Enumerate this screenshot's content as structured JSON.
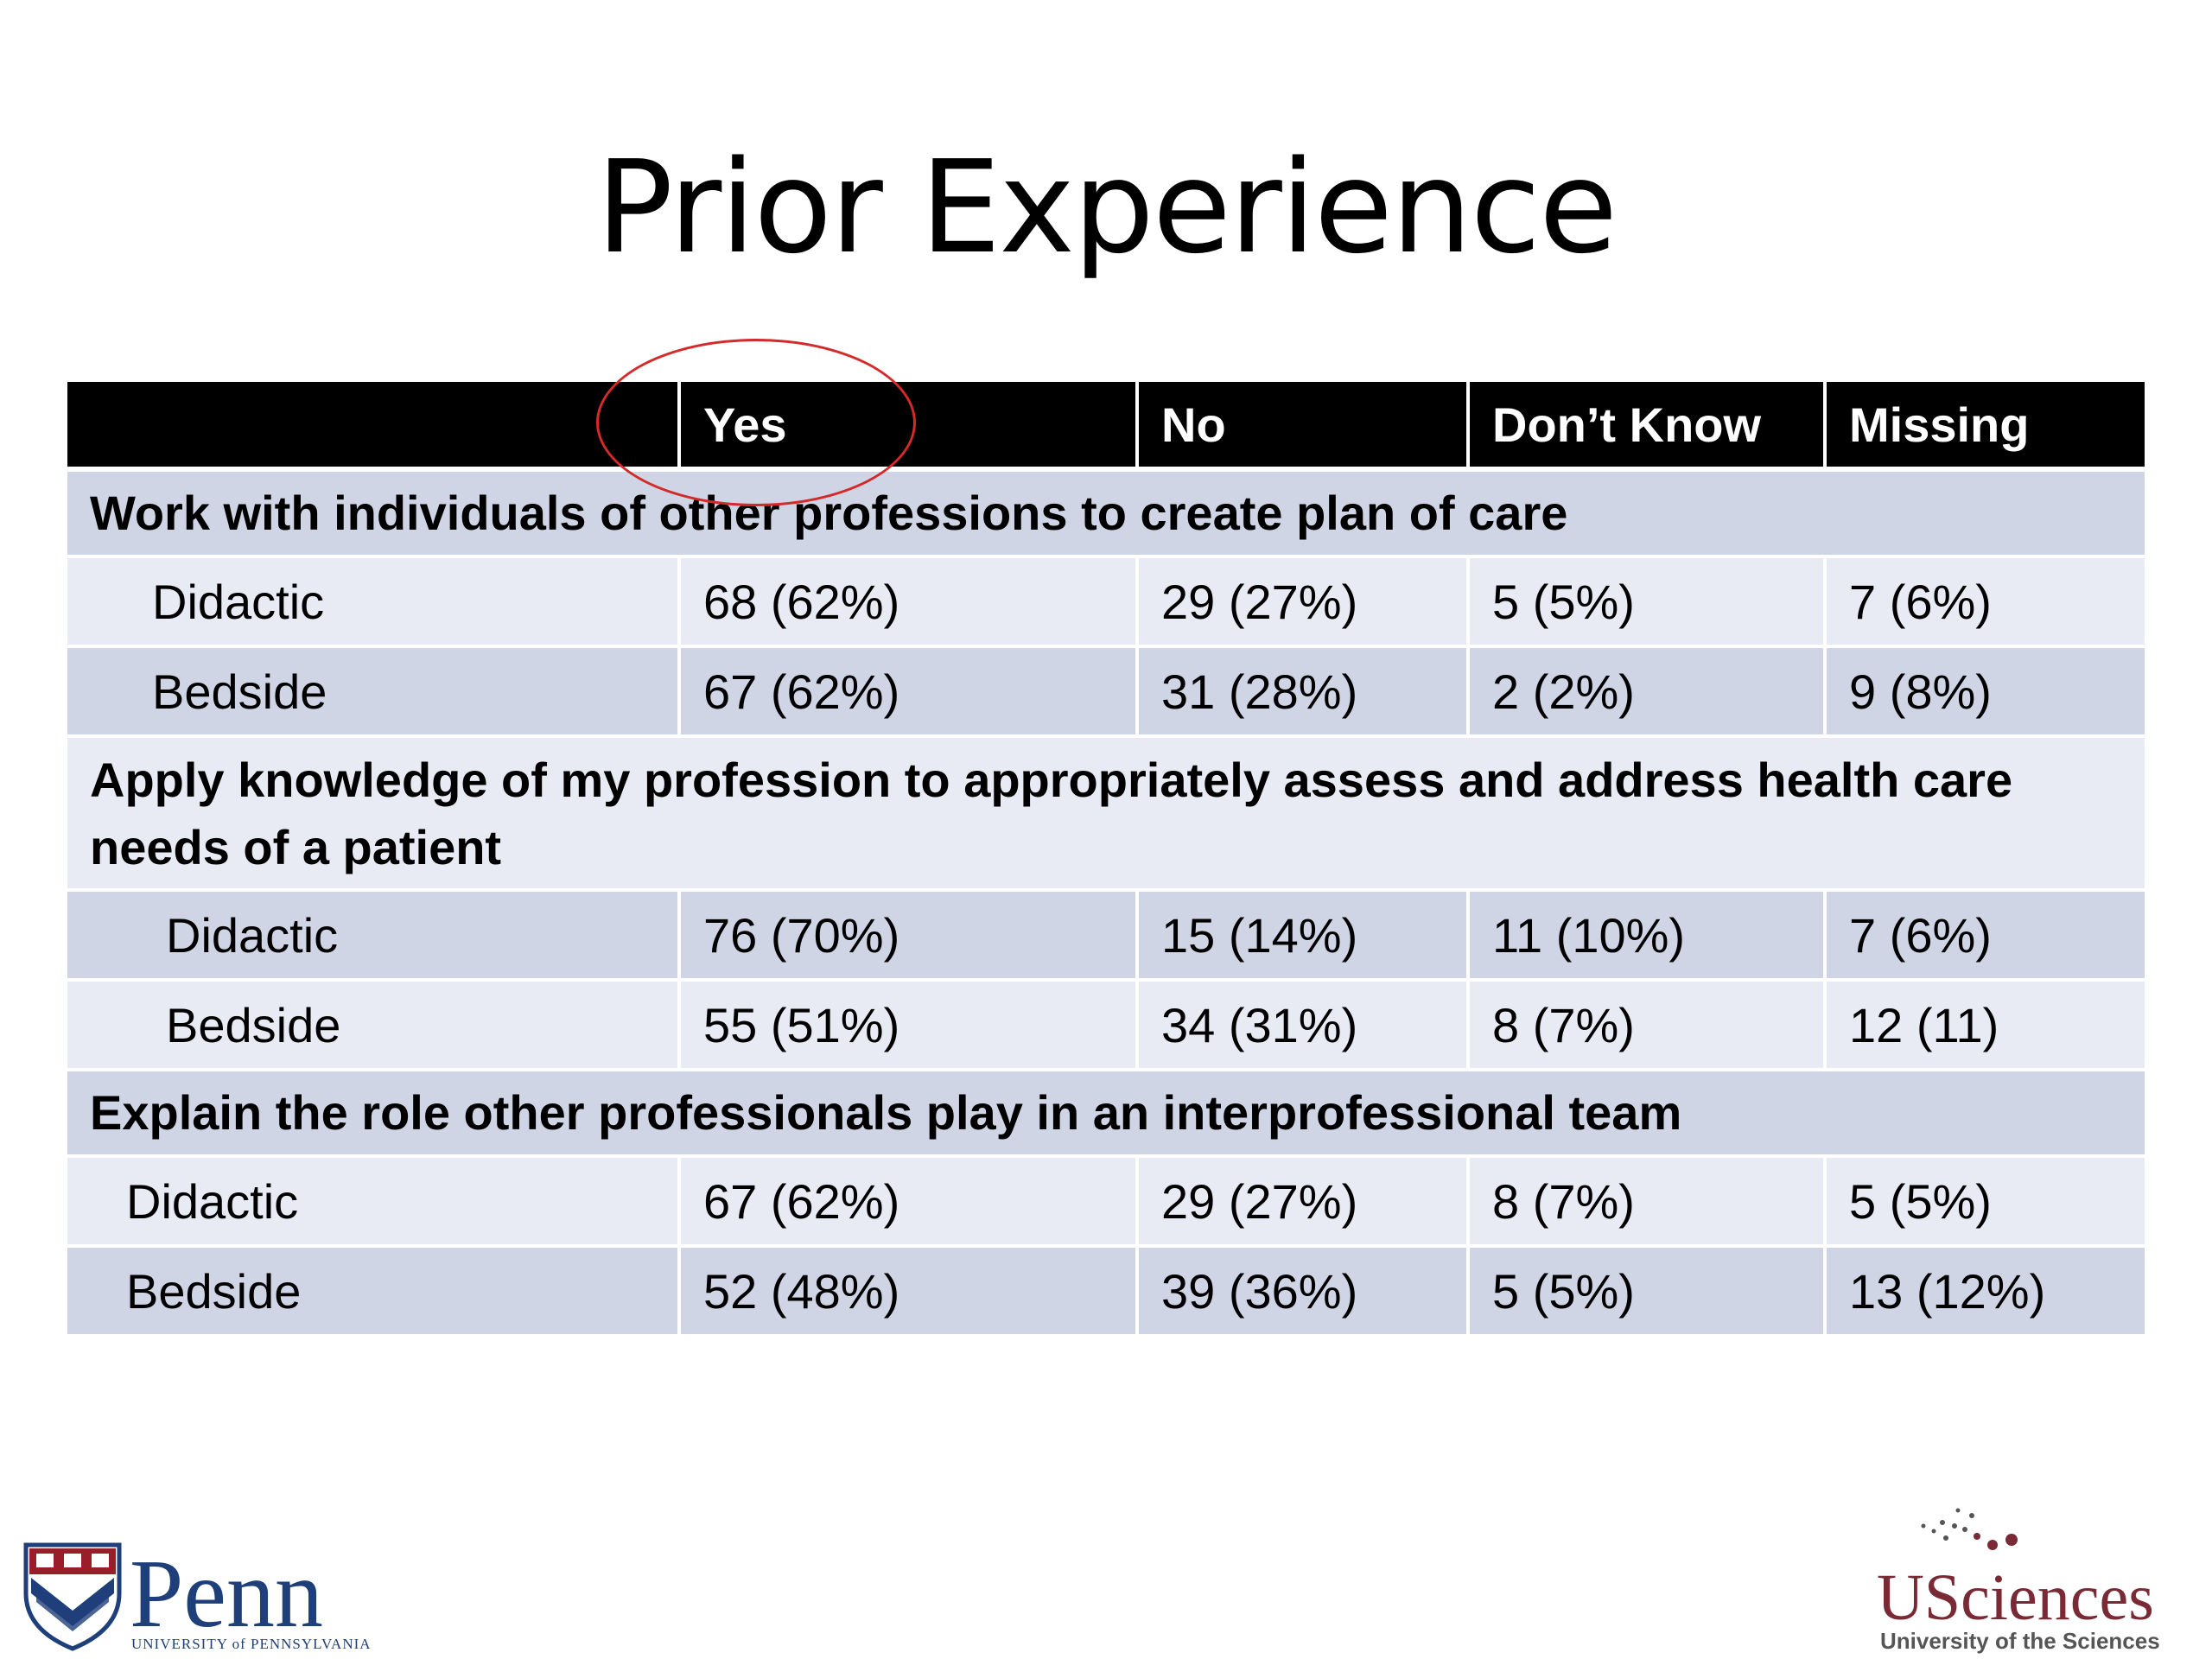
{
  "slide": {
    "title": "Prior Experience"
  },
  "table": {
    "headers": [
      "",
      "Yes",
      "No",
      "Don’t Know",
      "Missing"
    ],
    "sections": [
      {
        "title": "Work with individuals of other professions to create plan of care",
        "rows": [
          {
            "label": "Didactic",
            "yes": "68 (62%)",
            "no": "29 (27%)",
            "dont_know": "5 (5%)",
            "missing": "7 (6%)"
          },
          {
            "label": "Bedside",
            "yes": "67 (62%)",
            "no": "31 (28%)",
            "dont_know": "2 (2%)",
            "missing": "9 (8%)"
          }
        ]
      },
      {
        "title": "Apply knowledge of my profession to appropriately assess and address health care needs of a patient",
        "rows": [
          {
            "label": "Didactic",
            "yes": "76 (70%)",
            "no": "15 (14%)",
            "dont_know": "11 (10%)",
            "missing": "7 (6%)"
          },
          {
            "label": "Bedside",
            "yes": "55 (51%)",
            "no": "34 (31%)",
            "dont_know": "8 (7%)",
            "missing": "12 (11)"
          }
        ]
      },
      {
        "title": "Explain the role other professionals play in an interprofessional team",
        "rows": [
          {
            "label": "Didactic",
            "yes": "67 (62%)",
            "no": "29 (27%)",
            "dont_know": "8 (7%)",
            "missing": "5 (5%)"
          },
          {
            "label": "Bedside",
            "yes": "52 (48%)",
            "no": "39 (36%)",
            "dont_know": "5 (5%)",
            "missing": "13 (12%)"
          }
        ]
      }
    ]
  },
  "logos": {
    "penn": {
      "name": "Penn",
      "subtitle": "UNIVERSITY of PENNSYLVANIA",
      "color": "#1f3f7a"
    },
    "usciences": {
      "name": "USciences",
      "subtitle": "University of the Sciences",
      "color": "#7a2a35"
    }
  },
  "annotation": {
    "color": "#d42a2a",
    "target": "Yes"
  }
}
